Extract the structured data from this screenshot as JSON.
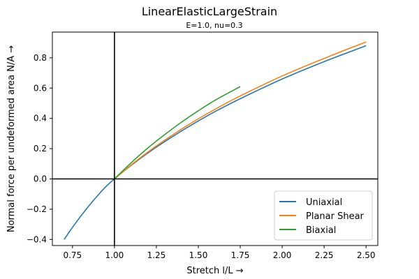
{
  "chart_data": {
    "type": "line",
    "title": "LinearElasticLargeStrain",
    "subtitle": "E=1.0, nu=0.3",
    "xlabel": "Stretch l/L  →",
    "ylabel": "Normal force per undeformed area N/A  →",
    "xlim": [
      0.63,
      2.57
    ],
    "ylim": [
      -0.44,
      0.97
    ],
    "xticks": [
      0.75,
      1.0,
      1.25,
      1.5,
      1.75,
      2.0,
      2.25,
      2.5
    ],
    "xtick_labels": [
      "0.75",
      "1.00",
      "1.25",
      "1.50",
      "1.75",
      "2.00",
      "2.25",
      "2.50"
    ],
    "yticks": [
      -0.4,
      -0.2,
      0.0,
      0.2,
      0.4,
      0.6,
      0.8
    ],
    "ytick_labels": [
      "−0.4",
      "−0.2",
      "0.0",
      "0.2",
      "0.4",
      "0.6",
      "0.8"
    ],
    "reference_lines": {
      "x": 1.0,
      "y": 0.0
    },
    "grid": false,
    "legend_position": "lower-right",
    "series": [
      {
        "name": "Uniaxial",
        "color": "#1f77b4",
        "x": [
          0.7,
          0.75,
          0.8,
          0.85,
          0.9,
          0.95,
          1.0,
          1.1,
          1.2,
          1.3,
          1.4,
          1.5,
          1.6,
          1.75,
          2.0,
          2.25,
          2.5
        ],
        "y": [
          -0.4,
          -0.32,
          -0.245,
          -0.175,
          -0.11,
          -0.05,
          0.0,
          0.09,
          0.172,
          0.247,
          0.317,
          0.383,
          0.445,
          0.53,
          0.66,
          0.775,
          0.88
        ]
      },
      {
        "name": "Planar Shear",
        "color": "#ff7f0e",
        "x": [
          1.0,
          1.1,
          1.2,
          1.3,
          1.4,
          1.5,
          1.6,
          1.75,
          2.0,
          2.25,
          2.5
        ],
        "y": [
          0.0,
          0.093,
          0.178,
          0.256,
          0.329,
          0.397,
          0.46,
          0.548,
          0.68,
          0.796,
          0.905
        ]
      },
      {
        "name": "Biaxial",
        "color": "#2ca02c",
        "x": [
          1.0,
          1.1,
          1.2,
          1.3,
          1.4,
          1.5,
          1.6,
          1.75
        ],
        "y": [
          0.0,
          0.107,
          0.205,
          0.293,
          0.375,
          0.45,
          0.52,
          0.61
        ]
      }
    ]
  }
}
